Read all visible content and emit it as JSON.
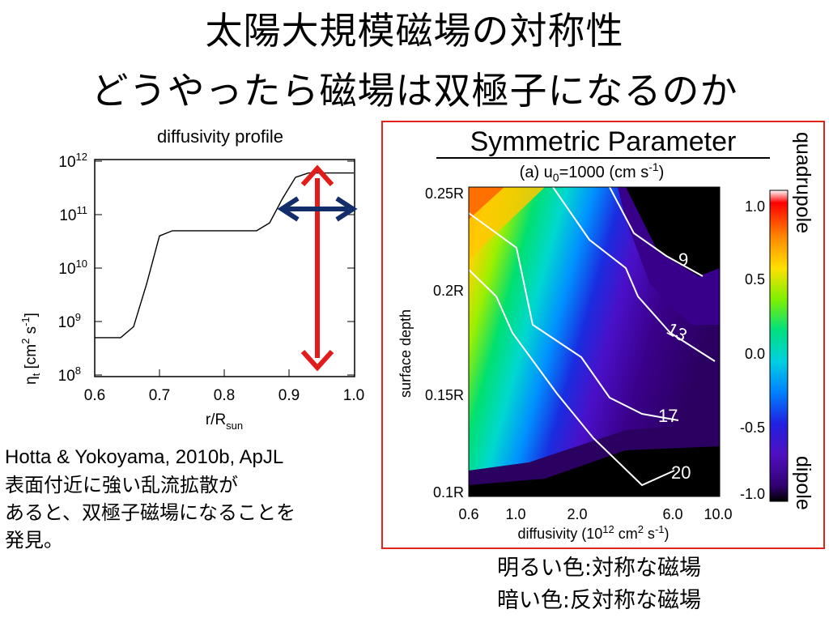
{
  "slide": {
    "title_line1": "太陽大規模磁場の対称性",
    "title_line2": "どうやったら磁場は双極子になるのか"
  },
  "left_chart": {
    "heading": "diffusivity profile",
    "ylabel": "η_t [cm² s⁻¹]",
    "xlabel": "r/R_sun",
    "xticks": [
      "0.6",
      "0.7",
      "0.8",
      "0.9",
      "1.0"
    ],
    "yticks": [
      "10^8",
      "10^9",
      "10^10",
      "10^11",
      "10^12"
    ]
  },
  "caption": {
    "line1": "Hotta & Yokoyama, 2010b, ApJL",
    "line2": "表面付近に強い乱流拡散が",
    "line3": "あると、双極子磁場になることを",
    "line4": "発見。"
  },
  "right_panel": {
    "heading": "Symmetric Parameter",
    "subtitle": "(a) u₀=1000 (cm s⁻¹)",
    "ylabel": "surface depth",
    "xlabel": "diffusivity (10¹² cm² s⁻¹)",
    "side_top": "quadrupole",
    "side_bottom": "dipole",
    "xticks": [
      "0.6",
      "1.0",
      "2.0",
      "6.0",
      "10.0"
    ],
    "yticks": [
      "0.25R",
      "0.2R",
      "0.15R",
      "0.1R"
    ],
    "colorbar_ticks": [
      "1.0",
      "0.5",
      "0.0",
      "-0.5",
      "-1.0"
    ],
    "contour_labels": [
      "9",
      "13",
      "17",
      "20"
    ]
  },
  "legend_jp": {
    "bright": "明るい色:対称な磁場",
    "dark": "暗い色:反対称な磁場"
  },
  "chart_data": [
    {
      "type": "line",
      "title": "diffusivity profile",
      "xlabel": "r/R_sun",
      "ylabel": "η_t [cm² s⁻¹]",
      "xlim": [
        0.6,
        1.0
      ],
      "ylim": [
        100000000.0,
        1000000000000.0
      ],
      "log_y": true,
      "x": [
        0.6,
        0.64,
        0.66,
        0.68,
        0.7,
        0.72,
        0.8,
        0.85,
        0.87,
        0.89,
        0.91,
        0.93,
        1.0
      ],
      "y": [
        500000000.0,
        500000000.0,
        800000000.0,
        5000000000.0,
        40000000000.0,
        50000000000.0,
        50000000000.0,
        50000000000.0,
        70000000000.0,
        200000000000.0,
        500000000000.0,
        600000000000.0,
        600000000000.0
      ]
    },
    {
      "type": "heatmap",
      "title": "Symmetric Parameter",
      "subtitle": "(a) u₀=1000 (cm s⁻¹)",
      "xlabel": "diffusivity (10¹² cm² s⁻¹)",
      "ylabel": "surface depth",
      "x": [
        "0.6",
        "1.0",
        "2.0",
        "6.0",
        "10.0"
      ],
      "y": [
        "0.25R",
        "0.2R",
        "0.15R",
        "0.1R"
      ],
      "colorbar_range": [
        -1.0,
        1.0
      ],
      "contours": [
        9,
        13,
        17,
        20
      ]
    }
  ]
}
